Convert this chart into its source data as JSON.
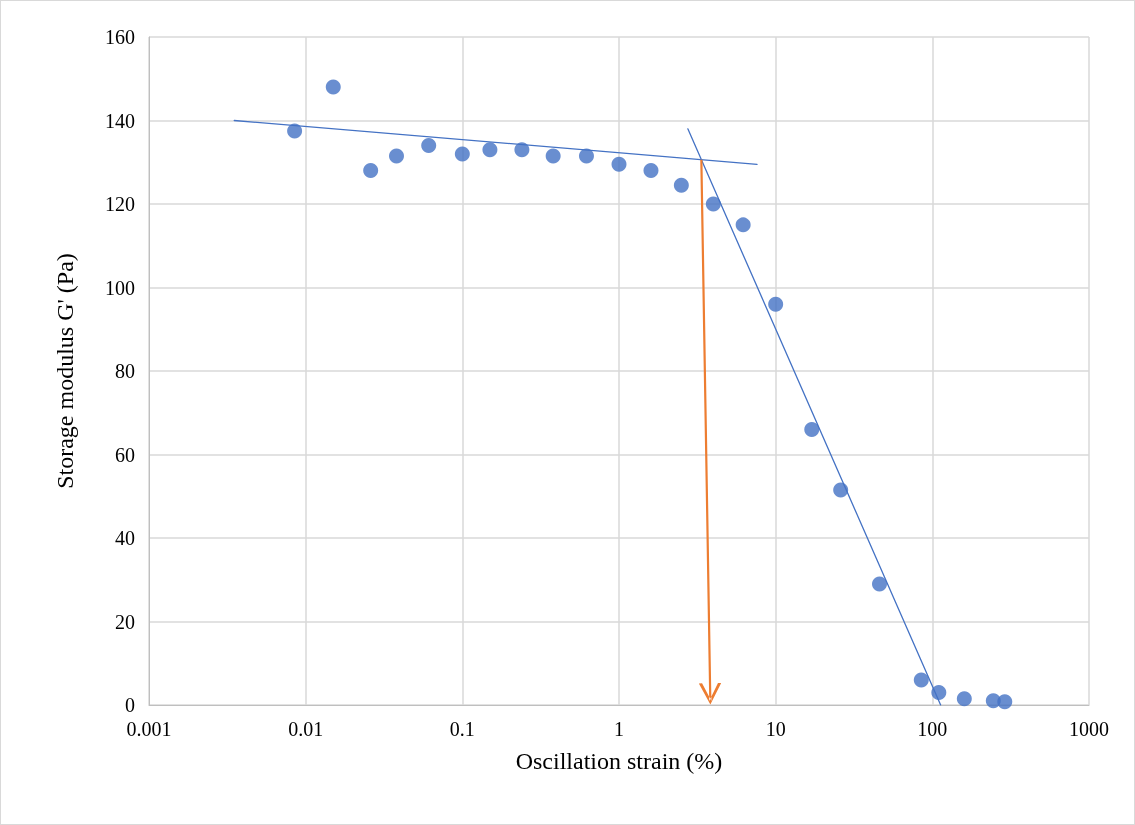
{
  "chart_data": {
    "type": "scatter",
    "xlabel": "Oscillation strain (%)",
    "ylabel": "Storage modulus G' (Pa)",
    "log": "x",
    "grid": true,
    "marker": "circle",
    "xlim": [
      0.001,
      1000
    ],
    "xticks": [
      0.001,
      0.01,
      0.1,
      1,
      10,
      100,
      1000
    ],
    "ylim": [
      0,
      160
    ],
    "yticks": [
      0,
      20,
      40,
      60,
      80,
      100,
      120,
      140,
      160
    ],
    "series": [
      {
        "color": "#4472c4",
        "x": [
          0.0085,
          0.015,
          0.026,
          0.038,
          0.061,
          0.1,
          0.15,
          0.24,
          0.38,
          0.62,
          1,
          1.6,
          2.5,
          4,
          6.2,
          10,
          17,
          26,
          46,
          85,
          110,
          160,
          245,
          290
        ],
        "values": [
          137.5,
          148,
          128,
          131.5,
          134,
          132,
          133,
          133,
          131.5,
          131.5,
          129.5,
          128,
          124.5,
          120,
          115,
          96,
          66,
          51.5,
          29,
          6,
          3,
          1.5,
          1,
          0.8
        ]
      },
      {
        "type": "line",
        "marker": "none",
        "color": "#4472c4",
        "x": [
          0.0035,
          7.6
        ],
        "values": [
          140,
          129.5
        ]
      },
      {
        "type": "line",
        "marker": "none",
        "color": "#4472c4",
        "x": [
          2.75,
          113
        ],
        "values": [
          138,
          0
        ]
      }
    ]
  }
}
